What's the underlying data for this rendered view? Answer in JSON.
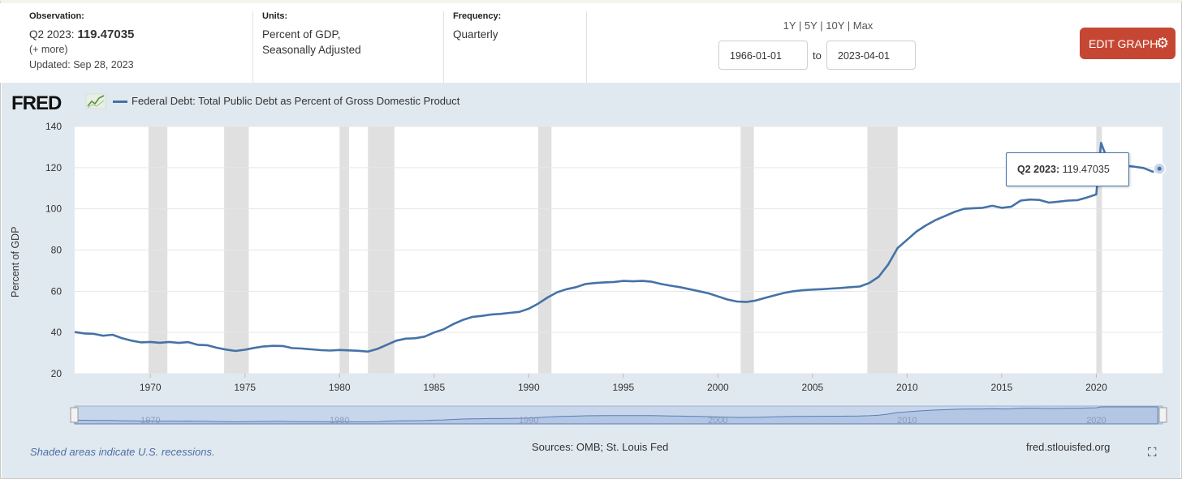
{
  "observation": {
    "header": "Observation:",
    "period": "Q2 2023:",
    "value": "119.47035",
    "more": "(+ more)",
    "updated": "Updated: Sep 28, 2023"
  },
  "units": {
    "header": "Units:",
    "line1": "Percent of GDP,",
    "line2": "Seasonally Adjusted"
  },
  "frequency": {
    "header": "Frequency:",
    "value": "Quarterly"
  },
  "range_links": [
    "1Y",
    "5Y",
    "10Y",
    "Max"
  ],
  "date_range": {
    "start": "1966-01-01",
    "to": "to",
    "end": "2023-04-01"
  },
  "edit_button": {
    "label": "EDIT GRAPH",
    "icon": "gear-icon"
  },
  "chart_header": {
    "logo": "FRED",
    "legend": "Federal Debt: Total Public Debt as Percent of Gross Domestic Product"
  },
  "tooltip": {
    "period": "Q2 2023:",
    "value": "119.47035"
  },
  "footer": {
    "note": "Shaded areas indicate U.S. recessions.",
    "sources": "Sources: OMB; St. Louis Fed",
    "url": "fred.stlouisfed.org"
  },
  "colors": {
    "line": "#4572a7",
    "recession": "#e0e0e0",
    "panel": "#e1e9f0",
    "button": "#c54733"
  },
  "chart_data": {
    "type": "line",
    "title": "Federal Debt: Total Public Debt as Percent of Gross Domestic Product",
    "ylabel": "Percent of GDP",
    "xlim": [
      1966,
      2023.5
    ],
    "ylim": [
      20,
      140
    ],
    "yticks": [
      20,
      40,
      60,
      80,
      100,
      120,
      140
    ],
    "xticks": [
      1970,
      1975,
      1980,
      1985,
      1990,
      1995,
      2000,
      2005,
      2010,
      2015,
      2020
    ],
    "navigator_ticks": [
      1970,
      1980,
      1990,
      2000,
      2010,
      2020
    ],
    "recessions": [
      [
        1969.9,
        1970.9
      ],
      [
        1973.9,
        1975.2
      ],
      [
        1980.0,
        1980.5
      ],
      [
        1981.5,
        1982.9
      ],
      [
        1990.5,
        1991.2
      ],
      [
        2001.2,
        2001.9
      ],
      [
        2007.9,
        2009.5
      ],
      [
        2020.0,
        2020.3
      ]
    ],
    "series": [
      {
        "name": "Federal Debt: Total Public Debt as Percent of Gross Domestic Product",
        "x": [
          1966.0,
          1966.5,
          1967.0,
          1967.5,
          1968.0,
          1968.5,
          1969.0,
          1969.5,
          1970.0,
          1970.5,
          1971.0,
          1971.5,
          1972.0,
          1972.5,
          1973.0,
          1973.5,
          1974.0,
          1974.5,
          1975.0,
          1975.5,
          1976.0,
          1976.5,
          1977.0,
          1977.5,
          1978.0,
          1978.5,
          1979.0,
          1979.5,
          1980.0,
          1980.5,
          1981.0,
          1981.5,
          1982.0,
          1982.5,
          1983.0,
          1983.5,
          1984.0,
          1984.5,
          1985.0,
          1985.5,
          1986.0,
          1986.5,
          1987.0,
          1987.5,
          1988.0,
          1988.5,
          1989.0,
          1989.5,
          1990.0,
          1990.5,
          1991.0,
          1991.5,
          1992.0,
          1992.5,
          1993.0,
          1993.5,
          1994.0,
          1994.5,
          1995.0,
          1995.5,
          1996.0,
          1996.5,
          1997.0,
          1997.5,
          1998.0,
          1998.5,
          1999.0,
          1999.5,
          2000.0,
          2000.5,
          2001.0,
          2001.5,
          2002.0,
          2002.5,
          2003.0,
          2003.5,
          2004.0,
          2004.5,
          2005.0,
          2005.5,
          2006.0,
          2006.5,
          2007.0,
          2007.5,
          2008.0,
          2008.5,
          2009.0,
          2009.25,
          2009.5,
          2010.0,
          2010.5,
          2011.0,
          2011.5,
          2012.0,
          2012.5,
          2013.0,
          2013.5,
          2014.0,
          2014.5,
          2015.0,
          2015.5,
          2016.0,
          2016.5,
          2017.0,
          2017.5,
          2018.0,
          2018.5,
          2019.0,
          2019.5,
          2020.0,
          2020.25,
          2020.5,
          2020.75,
          2021.0,
          2021.5,
          2022.0,
          2022.5,
          2023.0,
          2023.25
        ],
        "values": [
          40.2,
          39.5,
          39.3,
          38.4,
          38.9,
          37.2,
          36.0,
          35.2,
          35.4,
          35.0,
          35.4,
          34.9,
          35.3,
          34.0,
          33.8,
          32.6,
          31.7,
          31.0,
          31.6,
          32.5,
          33.2,
          33.5,
          33.4,
          32.4,
          32.2,
          31.8,
          31.4,
          31.2,
          31.5,
          31.3,
          31.1,
          30.7,
          32.0,
          34.0,
          36.0,
          37.0,
          37.2,
          38.0,
          40.0,
          41.5,
          44.0,
          46.0,
          47.5,
          48.0,
          48.7,
          49.0,
          49.5,
          50.0,
          51.5,
          54.0,
          57.0,
          59.5,
          61.0,
          62.0,
          63.5,
          64.0,
          64.3,
          64.5,
          65.0,
          64.8,
          65.0,
          64.6,
          63.5,
          62.7,
          62.0,
          61.0,
          60.0,
          59.0,
          57.5,
          56.0,
          55.0,
          54.8,
          55.5,
          56.8,
          58.0,
          59.2,
          60.0,
          60.5,
          60.8,
          61.0,
          61.3,
          61.6,
          62.0,
          62.3,
          64.0,
          67.0,
          73.0,
          77.0,
          81.0,
          85.0,
          89.0,
          92.0,
          94.5,
          96.5,
          98.5,
          100.0,
          100.3,
          100.5,
          101.5,
          100.5,
          101.0,
          104.0,
          104.5,
          104.3,
          103.0,
          103.5,
          104.0,
          104.2,
          105.5,
          107.0,
          132.0,
          126.0,
          125.0,
          124.0,
          121.0,
          120.5,
          119.8,
          118.0,
          119.47
        ]
      }
    ]
  }
}
